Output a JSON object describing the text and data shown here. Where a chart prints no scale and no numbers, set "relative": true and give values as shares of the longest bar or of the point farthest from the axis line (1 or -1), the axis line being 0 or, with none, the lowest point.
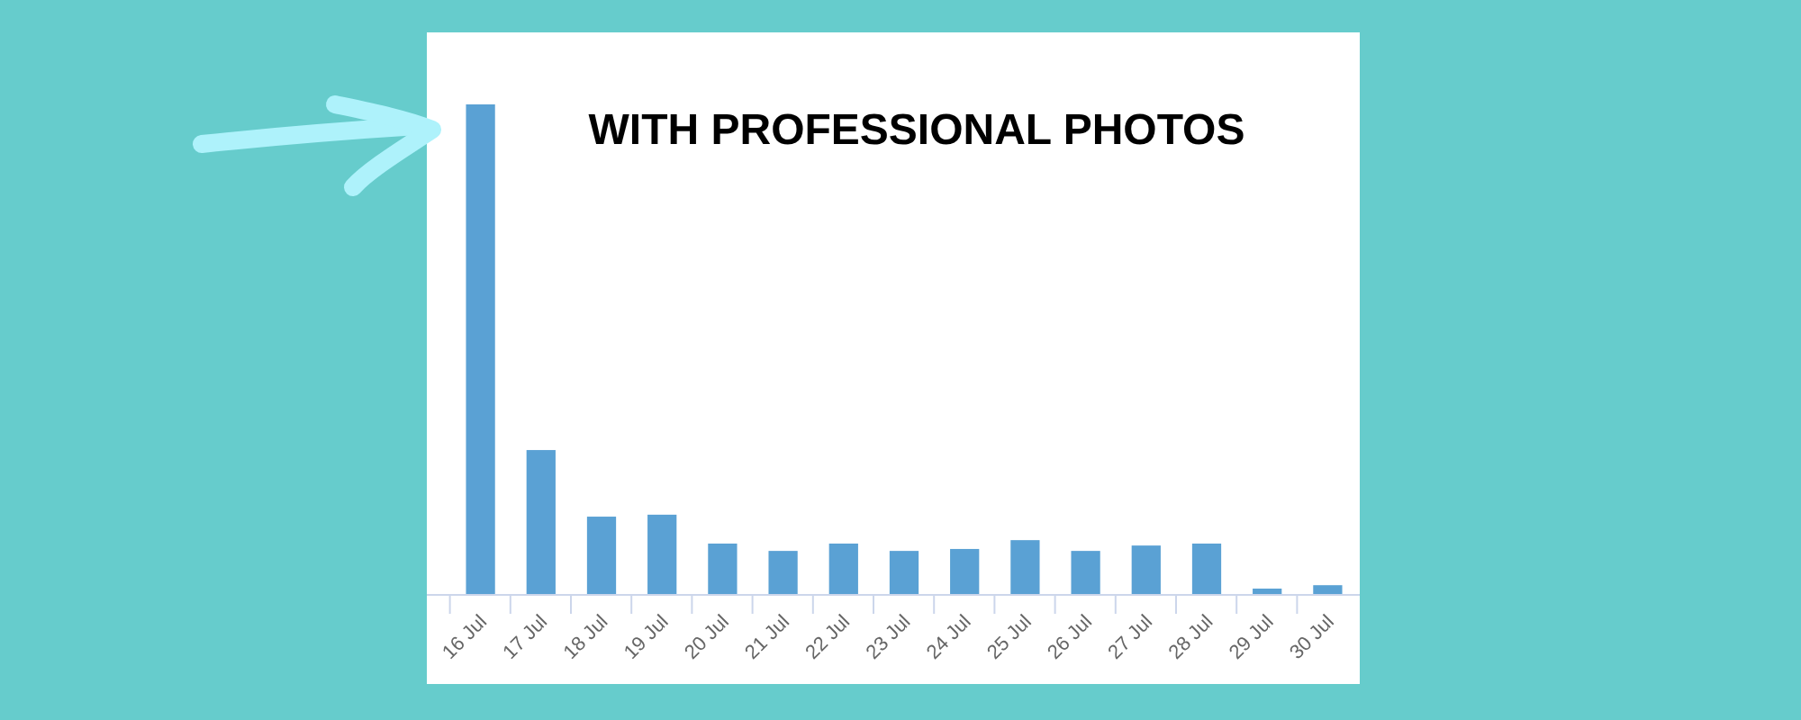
{
  "chart_data": {
    "type": "bar",
    "title": "WITH PROFESSIONAL PHOTOS",
    "relative": true,
    "color": "#5aa1d4",
    "categories": [
      "16 Jul",
      "17 Jul",
      "18 Jul",
      "19 Jul",
      "20 Jul",
      "21 Jul",
      "22 Jul",
      "23 Jul",
      "24 Jul",
      "25 Jul",
      "26 Jul",
      "27 Jul",
      "28 Jul",
      "29 Jul",
      "30 Jul"
    ],
    "values": [
      1,
      0.294,
      0.158,
      0.162,
      0.103,
      0.088,
      0.103,
      0.088,
      0.092,
      0.11,
      0.088,
      0.099,
      0.103,
      0.011,
      0.018
    ]
  }
}
